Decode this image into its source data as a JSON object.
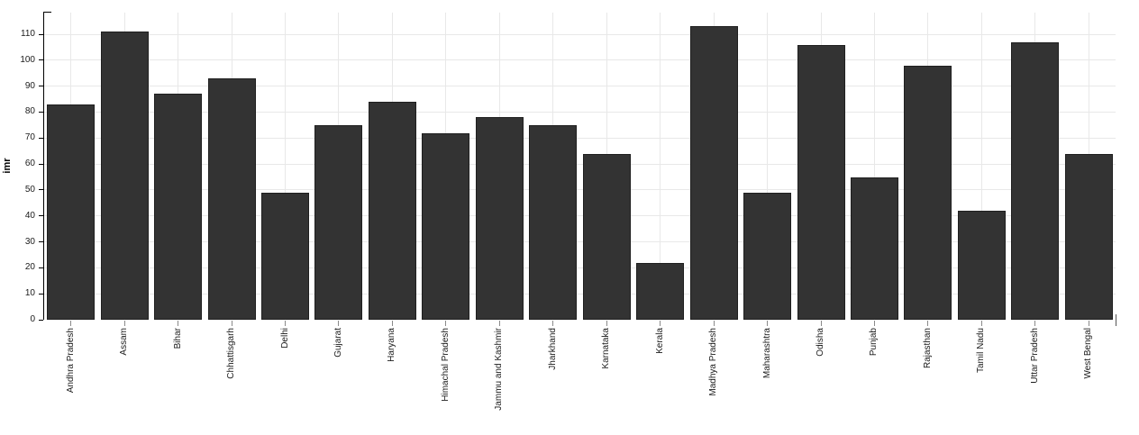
{
  "chart_data": {
    "type": "bar",
    "title": "",
    "xlabel": "",
    "ylabel": "imr",
    "categories": [
      "Andhra Pradesh",
      "Assam",
      "Bihar",
      "Chhattisgarh",
      "Delhi",
      "Gujarat",
      "Haryana",
      "Himachal Pradesh",
      "Jammu and Kashmir",
      "Jharkhand",
      "Karnataka",
      "Kerala",
      "Madhya Pradesh",
      "Maharashtra",
      "Odisha",
      "Punjab",
      "Rajasthan",
      "Tamil Nadu",
      "Uttar Pradesh",
      "West Bengal"
    ],
    "values": [
      83,
      111,
      87,
      93,
      49,
      75,
      84,
      72,
      78,
      75,
      64,
      22,
      113,
      49,
      106,
      55,
      98,
      42,
      107,
      64
    ],
    "yticks": [
      0,
      10,
      20,
      30,
      40,
      50,
      60,
      70,
      80,
      90,
      100,
      110
    ],
    "ytick_labels": [
      "0",
      "10",
      "20",
      "30",
      "40",
      "50",
      "60",
      "70",
      "80",
      "90",
      "100",
      "110"
    ],
    "ylim": [
      0,
      118
    ],
    "grid": "major horizontal and vertical, light gray, on white background",
    "legend_position": "none",
    "colors": {
      "bar_fill": "#333333",
      "bar_stroke": "#1f1f1f",
      "grid_line": "#e8e8e8",
      "y_axis": "#000000",
      "x_tick": "#8a8a8a",
      "text": "#1a1a1a"
    }
  }
}
